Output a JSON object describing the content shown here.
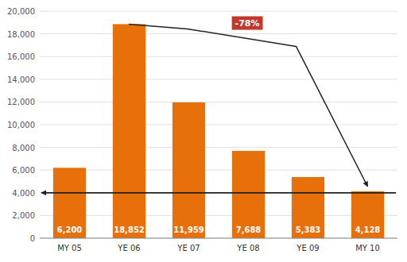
{
  "chart_data": {
    "type": "bar",
    "categories": [
      "MY 05",
      "YE 06",
      "YE 07",
      "YE 08",
      "YE 09",
      "MY 10"
    ],
    "values": [
      6200,
      18852,
      11959,
      7688,
      5383,
      4128
    ],
    "value_labels": [
      "6,200",
      "18,852",
      "11,959",
      "7,688",
      "5,383",
      "4,128"
    ],
    "data_labels": true,
    "color": "#E8700A",
    "ylim": [
      0,
      20000
    ],
    "yticks": [
      0,
      {
        "value": 2000,
        "label": "2,000"
      },
      {
        "value": 4000,
        "label": "4,000"
      },
      {
        "value": 6000,
        "label": "6,000"
      },
      {
        "value": 8000,
        "label": "8,000"
      },
      {
        "value": 10000,
        "label": "10,000"
      },
      {
        "value": 12000,
        "label": "12,000"
      },
      {
        "value": 14000,
        "label": "14,000"
      },
      {
        "value": 16000,
        "label": "16,000"
      },
      {
        "value": 18000,
        "label": "18,000"
      },
      {
        "value": 20000,
        "label": "20,000"
      }
    ],
    "grid": true,
    "reference_line": 4000,
    "annotation": "-78%"
  }
}
